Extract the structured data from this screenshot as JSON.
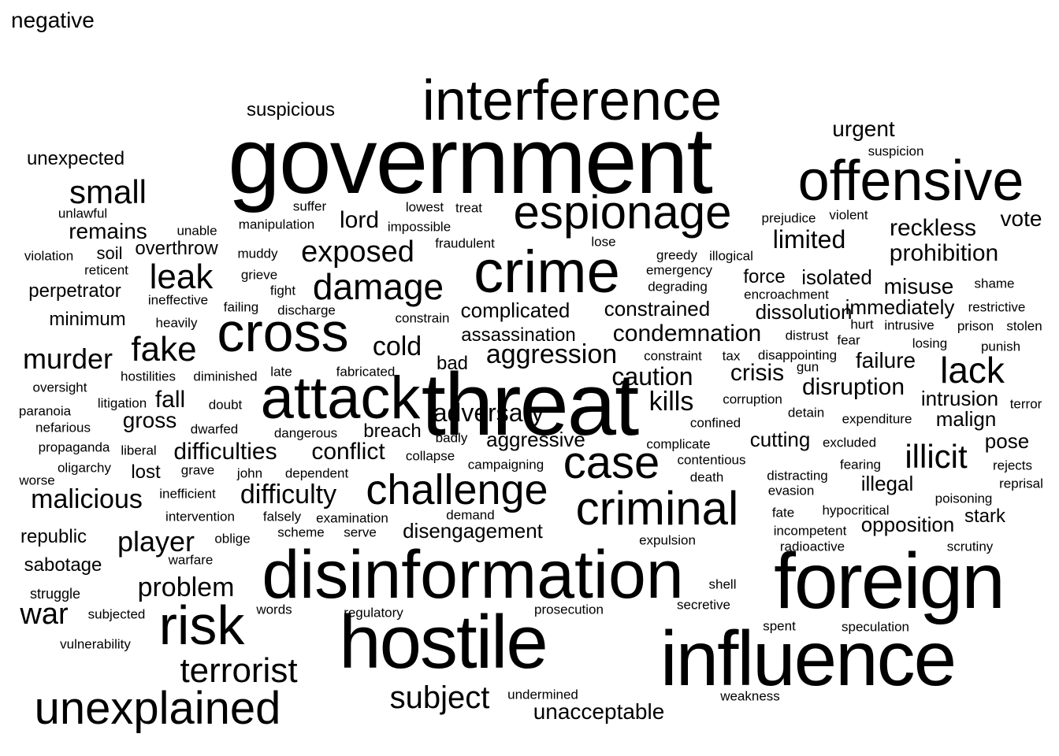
{
  "title": "negative",
  "words": [
    {
      "text": "government",
      "weight": 120
    },
    {
      "text": "threat",
      "weight": 112
    },
    {
      "text": "foreign",
      "weight": 100
    },
    {
      "text": "influence",
      "weight": 98
    },
    {
      "text": "hostile",
      "weight": 96
    },
    {
      "text": "disinformation",
      "weight": 86
    },
    {
      "text": "attack",
      "weight": 76
    },
    {
      "text": "crime",
      "weight": 76
    },
    {
      "text": "interference",
      "weight": 72
    },
    {
      "text": "offensive",
      "weight": 72
    },
    {
      "text": "cross",
      "weight": 70
    },
    {
      "text": "risk",
      "weight": 70
    },
    {
      "text": "espionage",
      "weight": 60
    },
    {
      "text": "criminal",
      "weight": 60
    },
    {
      "text": "case",
      "weight": 58
    },
    {
      "text": "unexplained",
      "weight": 58
    },
    {
      "text": "challenge",
      "weight": 54
    },
    {
      "text": "lack",
      "weight": 46
    },
    {
      "text": "damage",
      "weight": 46
    },
    {
      "text": "fake",
      "weight": 44
    },
    {
      "text": "terrorist",
      "weight": 44
    },
    {
      "text": "leak",
      "weight": 44
    },
    {
      "text": "small",
      "weight": 42
    },
    {
      "text": "illicit",
      "weight": 42
    },
    {
      "text": "subject",
      "weight": 40
    },
    {
      "text": "exposed",
      "weight": 38
    },
    {
      "text": "war",
      "weight": 38
    },
    {
      "text": "murder",
      "weight": 36
    },
    {
      "text": "player",
      "weight": 36
    },
    {
      "text": "cold",
      "weight": 34
    },
    {
      "text": "kills",
      "weight": 34
    },
    {
      "text": "malicious",
      "weight": 34
    },
    {
      "text": "aggression",
      "weight": 34
    },
    {
      "text": "difficulty",
      "weight": 34
    },
    {
      "text": "problem",
      "weight": 34
    },
    {
      "text": "caution",
      "weight": 32
    },
    {
      "text": "adversary",
      "weight": 32
    },
    {
      "text": "limited",
      "weight": 32
    },
    {
      "text": "condemnation",
      "weight": 30
    },
    {
      "text": "conflict",
      "weight": 30
    },
    {
      "text": "difficulties",
      "weight": 30
    },
    {
      "text": "lord",
      "weight": 30
    },
    {
      "text": "fall",
      "weight": 30
    },
    {
      "text": "crisis",
      "weight": 30
    },
    {
      "text": "disruption",
      "weight": 30
    },
    {
      "text": "prohibition",
      "weight": 30
    },
    {
      "text": "reckless",
      "weight": 30
    },
    {
      "text": "remains",
      "weight": 28
    },
    {
      "text": "failure",
      "weight": 28
    },
    {
      "text": "misuse",
      "weight": 28
    },
    {
      "text": "gross",
      "weight": 28
    },
    {
      "text": "vote",
      "weight": 28
    },
    {
      "text": "urgent",
      "weight": 28
    },
    {
      "text": "unacceptable",
      "weight": 28
    },
    {
      "text": "complicated",
      "weight": 26
    },
    {
      "text": "constrained",
      "weight": 26
    },
    {
      "text": "aggressive",
      "weight": 26
    },
    {
      "text": "immediately",
      "weight": 26
    },
    {
      "text": "isolated",
      "weight": 26
    },
    {
      "text": "dissolution",
      "weight": 26
    },
    {
      "text": "illegal",
      "weight": 26
    },
    {
      "text": "opposition",
      "weight": 26
    },
    {
      "text": "malign",
      "weight": 26
    },
    {
      "text": "intrusion",
      "weight": 26
    },
    {
      "text": "pose",
      "weight": 26
    },
    {
      "text": "disengagement",
      "weight": 26
    },
    {
      "text": "cutting",
      "weight": 26
    },
    {
      "text": "assassination",
      "weight": 24
    },
    {
      "text": "force",
      "weight": 24
    },
    {
      "text": "stark",
      "weight": 24
    },
    {
      "text": "breach",
      "weight": 24
    },
    {
      "text": "overthrow",
      "weight": 24
    },
    {
      "text": "lost",
      "weight": 24
    },
    {
      "text": "minimum",
      "weight": 24
    },
    {
      "text": "perpetrator",
      "weight": 24
    },
    {
      "text": "suspicious",
      "weight": 24
    },
    {
      "text": "unexpected",
      "weight": 24
    },
    {
      "text": "bad",
      "weight": 24
    },
    {
      "text": "republic",
      "weight": 24
    },
    {
      "text": "sabotage",
      "weight": 24
    },
    {
      "text": "soil",
      "weight": 22
    },
    {
      "text": "struggle",
      "weight": 18
    },
    {
      "text": "vulnerability",
      "weight": 17
    },
    {
      "text": "subjected",
      "weight": 17
    },
    {
      "text": "words",
      "weight": 17
    },
    {
      "text": "regulatory",
      "weight": 17
    },
    {
      "text": "prosecution",
      "weight": 17
    },
    {
      "text": "secretive",
      "weight": 17
    },
    {
      "text": "shell",
      "weight": 17
    },
    {
      "text": "spent",
      "weight": 17
    },
    {
      "text": "speculation",
      "weight": 17
    },
    {
      "text": "weakness",
      "weight": 17
    },
    {
      "text": "undermined",
      "weight": 17
    },
    {
      "text": "expulsion",
      "weight": 17
    },
    {
      "text": "radioactive",
      "weight": 17
    },
    {
      "text": "scrutiny",
      "weight": 17
    },
    {
      "text": "incompetent",
      "weight": 17
    },
    {
      "text": "poisoning",
      "weight": 17
    },
    {
      "text": "hypocritical",
      "weight": 17
    },
    {
      "text": "fate",
      "weight": 17
    },
    {
      "text": "reprisal",
      "weight": 17
    },
    {
      "text": "evasion",
      "weight": 17
    },
    {
      "text": "distracting",
      "weight": 17
    },
    {
      "text": "death",
      "weight": 17
    },
    {
      "text": "fearing",
      "weight": 17
    },
    {
      "text": "rejects",
      "weight": 17
    },
    {
      "text": "contentious",
      "weight": 17
    },
    {
      "text": "excluded",
      "weight": 17
    },
    {
      "text": "complicate",
      "weight": 17
    },
    {
      "text": "expenditure",
      "weight": 17
    },
    {
      "text": "terror",
      "weight": 17
    },
    {
      "text": "detain",
      "weight": 17
    },
    {
      "text": "confined",
      "weight": 17
    },
    {
      "text": "corruption",
      "weight": 17
    },
    {
      "text": "gun",
      "weight": 17
    },
    {
      "text": "tax",
      "weight": 17
    },
    {
      "text": "punish",
      "weight": 17
    },
    {
      "text": "losing",
      "weight": 17
    },
    {
      "text": "fear",
      "weight": 17
    },
    {
      "text": "disappointing",
      "weight": 17
    },
    {
      "text": "constraint",
      "weight": 17
    },
    {
      "text": "stolen",
      "weight": 17
    },
    {
      "text": "prison",
      "weight": 17
    },
    {
      "text": "intrusive",
      "weight": 17
    },
    {
      "text": "hurt",
      "weight": 17
    },
    {
      "text": "distrust",
      "weight": 17
    },
    {
      "text": "restrictive",
      "weight": 17
    },
    {
      "text": "encroachment",
      "weight": 17
    },
    {
      "text": "shame",
      "weight": 17
    },
    {
      "text": "degrading",
      "weight": 17
    },
    {
      "text": "emergency",
      "weight": 17
    },
    {
      "text": "greedy",
      "weight": 17
    },
    {
      "text": "illogical",
      "weight": 17
    },
    {
      "text": "lose",
      "weight": 17
    },
    {
      "text": "prejudice",
      "weight": 17
    },
    {
      "text": "violent",
      "weight": 17
    },
    {
      "text": "suspicion",
      "weight": 17
    },
    {
      "text": "fraudulent",
      "weight": 17
    },
    {
      "text": "lowest",
      "weight": 17
    },
    {
      "text": "treat",
      "weight": 17
    },
    {
      "text": "impossible",
      "weight": 17
    },
    {
      "text": "suffer",
      "weight": 17
    },
    {
      "text": "manipulation",
      "weight": 17
    },
    {
      "text": "unable",
      "weight": 17
    },
    {
      "text": "muddy",
      "weight": 17
    },
    {
      "text": "grieve",
      "weight": 17
    },
    {
      "text": "fight",
      "weight": 17
    },
    {
      "text": "failing",
      "weight": 17
    },
    {
      "text": "discharge",
      "weight": 17
    },
    {
      "text": "constrain",
      "weight": 17
    },
    {
      "text": "heavily",
      "weight": 17
    },
    {
      "text": "ineffective",
      "weight": 17
    },
    {
      "text": "reticent",
      "weight": 17
    },
    {
      "text": "violation",
      "weight": 17
    },
    {
      "text": "unlawful",
      "weight": 17
    },
    {
      "text": "oversight",
      "weight": 17
    },
    {
      "text": "hostilities",
      "weight": 17
    },
    {
      "text": "diminished",
      "weight": 17
    },
    {
      "text": "late",
      "weight": 17
    },
    {
      "text": "fabricated",
      "weight": 17
    },
    {
      "text": "litigation",
      "weight": 17
    },
    {
      "text": "doubt",
      "weight": 17
    },
    {
      "text": "paranoia",
      "weight": 17
    },
    {
      "text": "nefarious",
      "weight": 17
    },
    {
      "text": "dwarfed",
      "weight": 17
    },
    {
      "text": "dangerous",
      "weight": 17
    },
    {
      "text": "badly",
      "weight": 17
    },
    {
      "text": "collapse",
      "weight": 17
    },
    {
      "text": "campaigning",
      "weight": 17
    },
    {
      "text": "propaganda",
      "weight": 17
    },
    {
      "text": "liberal",
      "weight": 17
    },
    {
      "text": "oligarchy",
      "weight": 17
    },
    {
      "text": "grave",
      "weight": 17
    },
    {
      "text": "john",
      "weight": 17
    },
    {
      "text": "dependent",
      "weight": 17
    },
    {
      "text": "worse",
      "weight": 17
    },
    {
      "text": "inefficient",
      "weight": 17
    },
    {
      "text": "falsely",
      "weight": 17
    },
    {
      "text": "examination",
      "weight": 17
    },
    {
      "text": "demand",
      "weight": 17
    },
    {
      "text": "intervention",
      "weight": 17
    },
    {
      "text": "oblige",
      "weight": 17
    },
    {
      "text": "scheme",
      "weight": 17
    },
    {
      "text": "serve",
      "weight": 17
    },
    {
      "text": "warfare",
      "weight": 17
    }
  ]
}
